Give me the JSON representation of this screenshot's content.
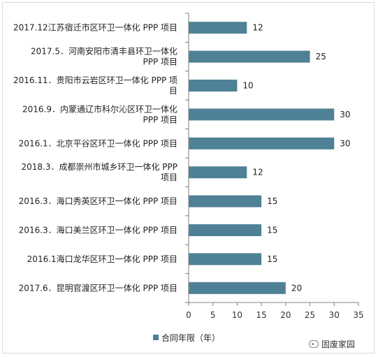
{
  "chart_data": {
    "type": "bar",
    "orientation": "horizontal",
    "categories": [
      [
        "2017.12江苏宿迁市区环卫一体化 PPP 项目"
      ],
      [
        "2017.5．河南安阳市清丰县环卫一体化",
        "PPP 项目"
      ],
      [
        "2016.11．贵阳市云岩区环卫一体化 PPP 项",
        "目"
      ],
      [
        "2016.9．内蒙通辽市科尔沁区环卫一体化",
        "PPP 项目"
      ],
      [
        "2016.1．北京平谷区环卫一体化 PPP 项目"
      ],
      [
        "2018.3．成都崇州市城乡环卫一体化 PPP",
        "项目"
      ],
      [
        "2016.3．海口秀英区环卫一体化 PPP 项目"
      ],
      [
        "2016.3．海口美兰区环卫一体化 PPP 项目"
      ],
      [
        "2016.1海口龙华区环卫一体化 PPP 项目"
      ],
      [
        "2017.6．昆明官渡区环卫一体化 PPP 项目"
      ]
    ],
    "series": [
      {
        "name": "合同年限（年）",
        "values": [
          12,
          25,
          10,
          30,
          30,
          12,
          15,
          15,
          15,
          20
        ]
      }
    ],
    "xlim": [
      0,
      35
    ],
    "xticks": [
      0,
      5,
      10,
      15,
      20,
      25,
      30,
      35
    ],
    "grid": false,
    "legend_position": "bottom-left",
    "colors": {
      "bar": "#4f8196",
      "axis": "#7f7f7f"
    }
  },
  "watermark": "固废家园"
}
